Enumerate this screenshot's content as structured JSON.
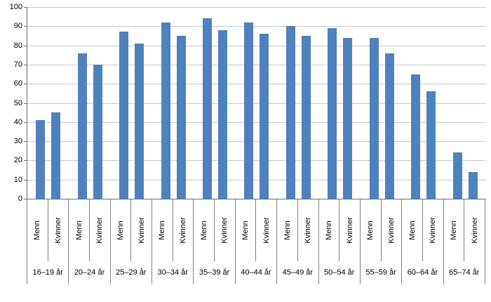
{
  "chart_data": {
    "type": "bar",
    "title": "",
    "categories": [
      "16–19 år",
      "20–24 år",
      "25–29 år",
      "30–34 år",
      "35–39 år",
      "40–44 år",
      "45–49 år",
      "50–54 år",
      "55–59 år",
      "60–64 år",
      "65–74 år"
    ],
    "subcategories": [
      "Menn",
      "Kvinner"
    ],
    "series": [
      {
        "name": "Menn",
        "values": [
          41,
          76,
          87,
          92,
          94,
          92,
          90,
          89,
          84,
          65,
          24
        ]
      },
      {
        "name": "Kvinner",
        "values": [
          45,
          70,
          81,
          85,
          88,
          86,
          85,
          84,
          76,
          56,
          14
        ]
      }
    ],
    "xlabel": "",
    "ylabel": "",
    "ylim": [
      0,
      100
    ],
    "yticks": [
      0,
      10,
      20,
      30,
      40,
      50,
      60,
      70,
      80,
      90,
      100
    ],
    "grid": "horizontal",
    "legend": "none",
    "bar_color": "#4f81bd",
    "gridline_color": "#c9c9c9",
    "axis_color": "#6e6e6e"
  }
}
